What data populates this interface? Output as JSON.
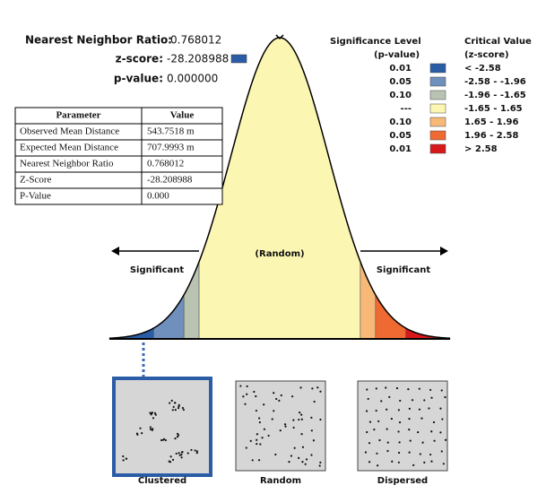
{
  "summary": {
    "ratio_label": "Nearest Neighbor Ratio:",
    "ratio_value": "0.768012",
    "z_label": "z-score:",
    "z_value": "-28.208988",
    "p_label": "p-value:",
    "p_value": "0.000000"
  },
  "table": {
    "header": [
      "Parameter",
      "Value"
    ],
    "rows": [
      [
        "Observed Mean Distance",
        "543.7518 m"
      ],
      [
        "Expected Mean Distance",
        "707.9993 m"
      ],
      [
        "Nearest Neighbor Ratio",
        "0.768012"
      ],
      [
        "Z-Score",
        "-28.208988"
      ],
      [
        "P-Value",
        "0.000"
      ]
    ]
  },
  "legend": {
    "sig_title": "Significance Level",
    "sig_sub": "(p-value)",
    "crit_title": "Critical Value",
    "crit_sub": "(z-score)",
    "rows": [
      {
        "p": "0.01",
        "z": "< -2.58",
        "color": "#2b5da6"
      },
      {
        "p": "0.05",
        "z": "-2.58 - -1.96",
        "color": "#6f8fbc"
      },
      {
        "p": "0.10",
        "z": "-1.96 - -1.65",
        "color": "#b9c3b2"
      },
      {
        "p": "---",
        "z": "-1.65 - 1.65",
        "color": "#fbf6b2"
      },
      {
        "p": "0.10",
        "z": "1.65 - 1.96",
        "color": "#f7b878"
      },
      {
        "p": "0.05",
        "z": "1.96 - 2.58",
        "color": "#ee6a32"
      },
      {
        "p": "0.01",
        "z": "> 2.58",
        "color": "#d7191c"
      }
    ]
  },
  "curve": {
    "center": "(Random)",
    "left": "Significant",
    "right": "Significant"
  },
  "patterns": [
    "Clustered",
    "Random",
    "Dispersed"
  ]
}
